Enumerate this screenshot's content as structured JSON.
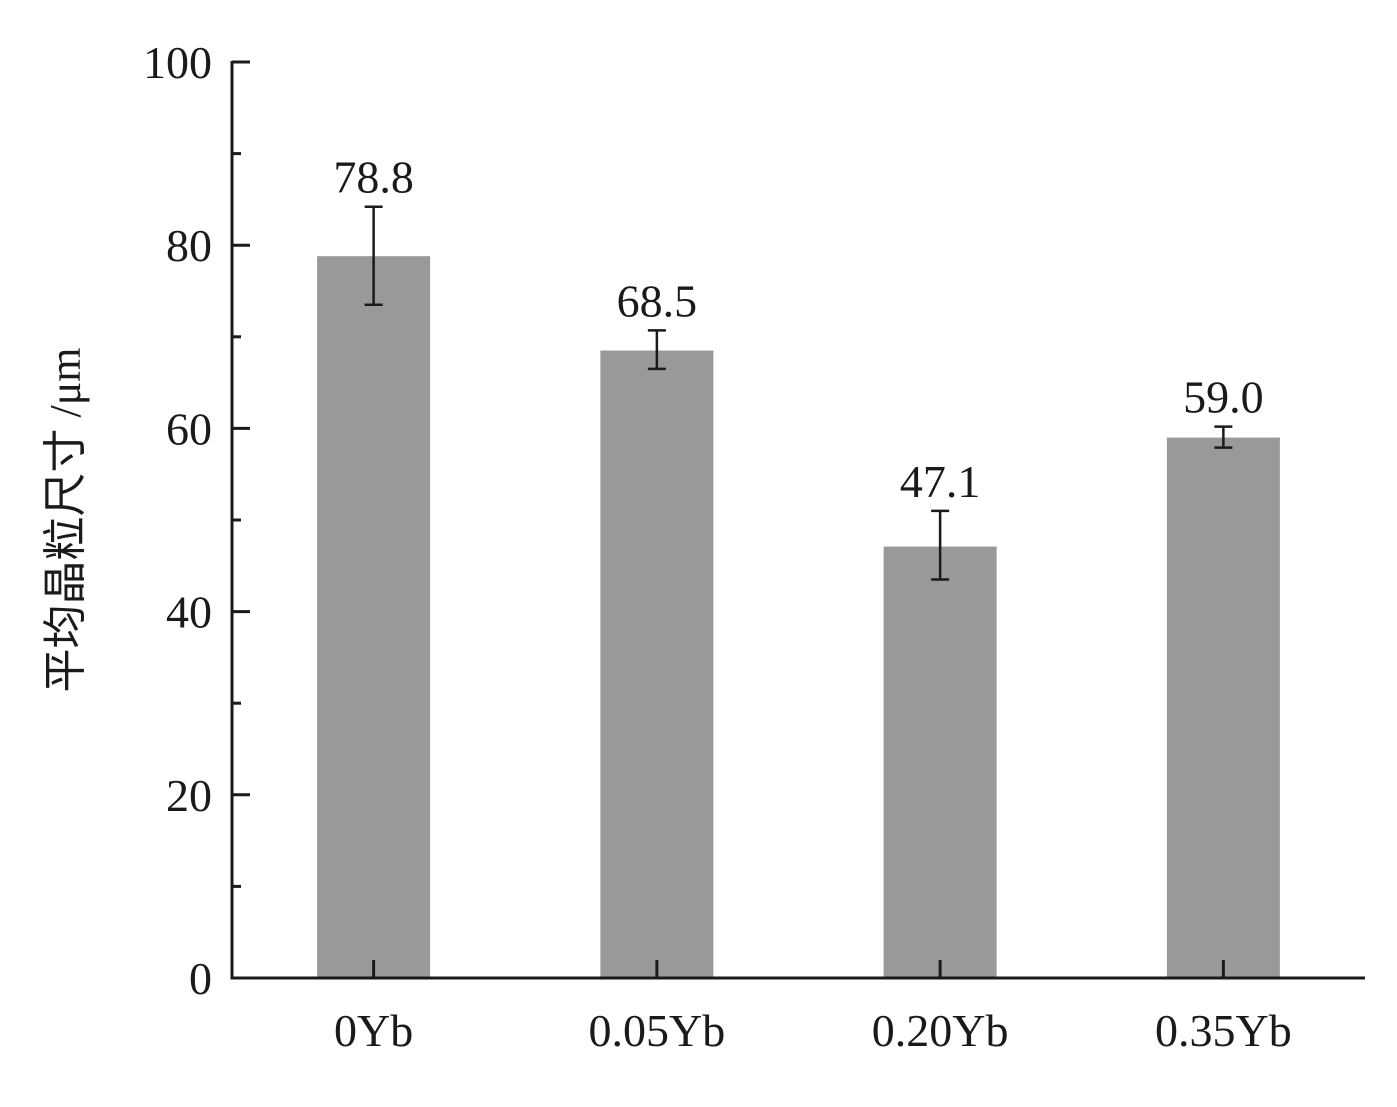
{
  "chart_data": {
    "type": "bar",
    "categories": [
      "0Yb",
      "0.05Yb",
      "0.20Yb",
      "0.35Yb"
    ],
    "values": [
      78.8,
      68.5,
      47.1,
      59.0
    ],
    "value_labels": [
      "78.8",
      "68.5",
      "47.1",
      "59.0"
    ],
    "errors": [
      [
        73.5,
        84.2
      ],
      [
        66.5,
        70.7
      ],
      [
        43.5,
        51.0
      ],
      [
        57.9,
        60.2
      ]
    ],
    "title": "",
    "xlabel": "",
    "ylabel": "平均晶粒尺寸 /μm",
    "ylim": [
      0,
      100
    ],
    "yticks": [
      0,
      20,
      40,
      60,
      80,
      100
    ],
    "ytick_labels": [
      "0",
      "20",
      "40",
      "60",
      "80",
      "100"
    ],
    "yminor_ticks": [
      10,
      30,
      50,
      70,
      90
    ],
    "grid": false,
    "legend": "none",
    "colors": {
      "bar": "#999999",
      "axis": "#1a1a1a",
      "error": "#1a1a1a"
    }
  }
}
